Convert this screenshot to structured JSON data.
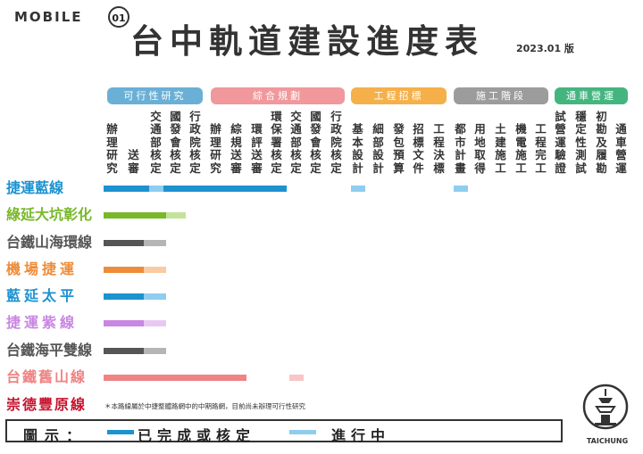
{
  "header": {
    "logo_text": "MOBILE",
    "logo_badge": "01",
    "title": "台中軌道建設進度表",
    "version": "2023.01 版"
  },
  "categories": [
    {
      "label": "可行性研究",
      "color": "#6ab0d6"
    },
    {
      "label": "綜合規劃",
      "color": "#f0989b"
    },
    {
      "label": "工程招標",
      "color": "#f5b04a"
    },
    {
      "label": "施工階段",
      "color": "#9c9c9c"
    },
    {
      "label": "通車營運",
      "color": "#45b580"
    }
  ],
  "columns": [
    "辦理研究",
    "送審",
    "交通部核定",
    "國發會核定",
    "行政院核定",
    "辦理研究",
    "綜規送審",
    "環評送審",
    "環保署核定",
    "交通部核定",
    "國發會核定",
    "行政院核定",
    "基本設計",
    "細部設計",
    "發包預算",
    "招標文件",
    "工程決標",
    "都市計畫",
    "用地取得",
    "土建施工",
    "機電施工",
    "工程完工",
    "試營運驗證",
    "穩定性測試",
    "初勘及履勘",
    "通車營運"
  ],
  "lines": [
    {
      "name": "捷運藍線",
      "color": "#1d92d0",
      "light": "#8fcdee",
      "done_end": "環保署核定",
      "progress": [
        "交通部核定",
        "基本設計",
        "都市計畫"
      ]
    },
    {
      "name": "綠延大坑彰化",
      "color": "#78b82a",
      "light": "#c4e39a",
      "done_end": "交通部核定",
      "progress": [
        "國發會核定"
      ]
    },
    {
      "name": "台鐵山海環線",
      "color": "#555555",
      "light": "#b5b5b5",
      "done_end": "送審",
      "progress": [
        "交通部核定"
      ]
    },
    {
      "name": "機場捷運",
      "color": "#ee8c3a",
      "light": "#f9cba2",
      "done_end": "送審",
      "progress": [
        "交通部核定"
      ]
    },
    {
      "name": "藍延太平",
      "color": "#1d92d0",
      "light": "#8fcdee",
      "done_end": "送審",
      "progress": [
        "交通部核定"
      ]
    },
    {
      "name": "捷運紫線",
      "color": "#c986e3",
      "light": "#e8c8f3",
      "done_end": "送審",
      "progress": [
        "交通部核定"
      ]
    },
    {
      "name": "台鐵海平雙線",
      "color": "#555555",
      "light": "#b5b5b5",
      "done_end": "送審",
      "progress": [
        "交通部核定"
      ]
    },
    {
      "name": "台鐵舊山線",
      "color": "#f08383",
      "light": "#f8c6c6",
      "done_end": "綜規送審",
      "progress": [
        "交通部核定(規劃)"
      ]
    },
    {
      "name": "崇德豐原線",
      "color": "#c7142f",
      "light": "",
      "done_end": "",
      "progress": []
    }
  ],
  "note": "＊本路線屬於中捷整體路網中的中期路網，目前尚未辦理可行性研究",
  "legend": {
    "label": "圖示：",
    "done_label": "已完成或核定",
    "done_color": "#1d92d0",
    "progress_label": "進行中",
    "progress_color": "#8fcdee"
  },
  "city_logo": {
    "name": "TAICHUNG",
    "icon": "tower-icon"
  }
}
